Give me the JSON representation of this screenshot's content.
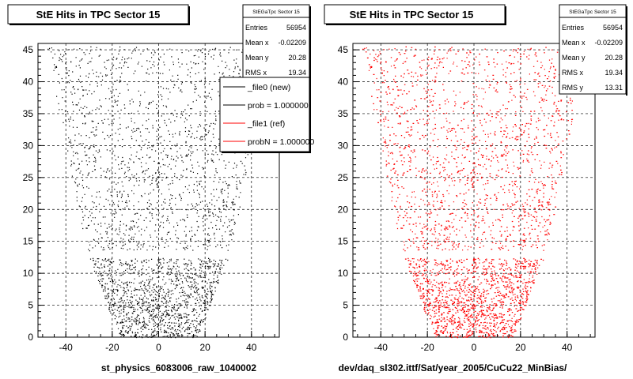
{
  "chart_data": [
    {
      "type": "scatter",
      "title": "StE Hits in TPC Sector 15",
      "xlabel": "st_physics_6083006_raw_1040002",
      "ylabel": "",
      "xlim": [
        -52,
        52
      ],
      "ylim": [
        0,
        46
      ],
      "xticks": [
        -40,
        -20,
        0,
        20,
        40
      ],
      "yticks": [
        0,
        5,
        10,
        15,
        20,
        25,
        30,
        35,
        40,
        45
      ],
      "grid": true,
      "marker_color": "#000000",
      "stats": {
        "name": "StEGaTpc Sector 15",
        "rows": [
          {
            "label": "Entries",
            "value": "56954"
          },
          {
            "label": "Mean x",
            "value": "-0.02209"
          },
          {
            "label": "Mean y",
            "value": "20.28"
          },
          {
            "label": "RMS x",
            "value": "19.34"
          }
        ]
      },
      "legend": {
        "placement": "top-right",
        "entries": [
          {
            "label": "_file0 (new)",
            "color": "#000000"
          },
          {
            "label": "prob = 1.000000",
            "color": "#000000"
          },
          {
            "label": "_file1 (ref)",
            "color": "#ff0000"
          },
          {
            "label": "probN = 1.000000",
            "color": "#ff0000"
          }
        ]
      }
    },
    {
      "type": "scatter",
      "title": "StE Hits in TPC Sector 15",
      "xlabel": "dev/daq_sl302.ittf/Sat/year_2005/CuCu22_MinBias/",
      "ylabel": "",
      "xlim": [
        -52,
        52
      ],
      "ylim": [
        0,
        46
      ],
      "xticks": [
        -40,
        -20,
        0,
        20,
        40
      ],
      "yticks": [
        0,
        5,
        10,
        15,
        20,
        25,
        30,
        35,
        40,
        45
      ],
      "grid": true,
      "marker_color": "#ff0000",
      "stats": {
        "name": "StEGaTpc Sector 15",
        "rows": [
          {
            "label": "Entries",
            "value": "56954"
          },
          {
            "label": "Mean x",
            "value": "-0.02209"
          },
          {
            "label": "Mean y",
            "value": "20.28"
          },
          {
            "label": "RMS x",
            "value": "19.34"
          },
          {
            "label": "RMS y",
            "value": "13.31"
          }
        ]
      }
    }
  ]
}
